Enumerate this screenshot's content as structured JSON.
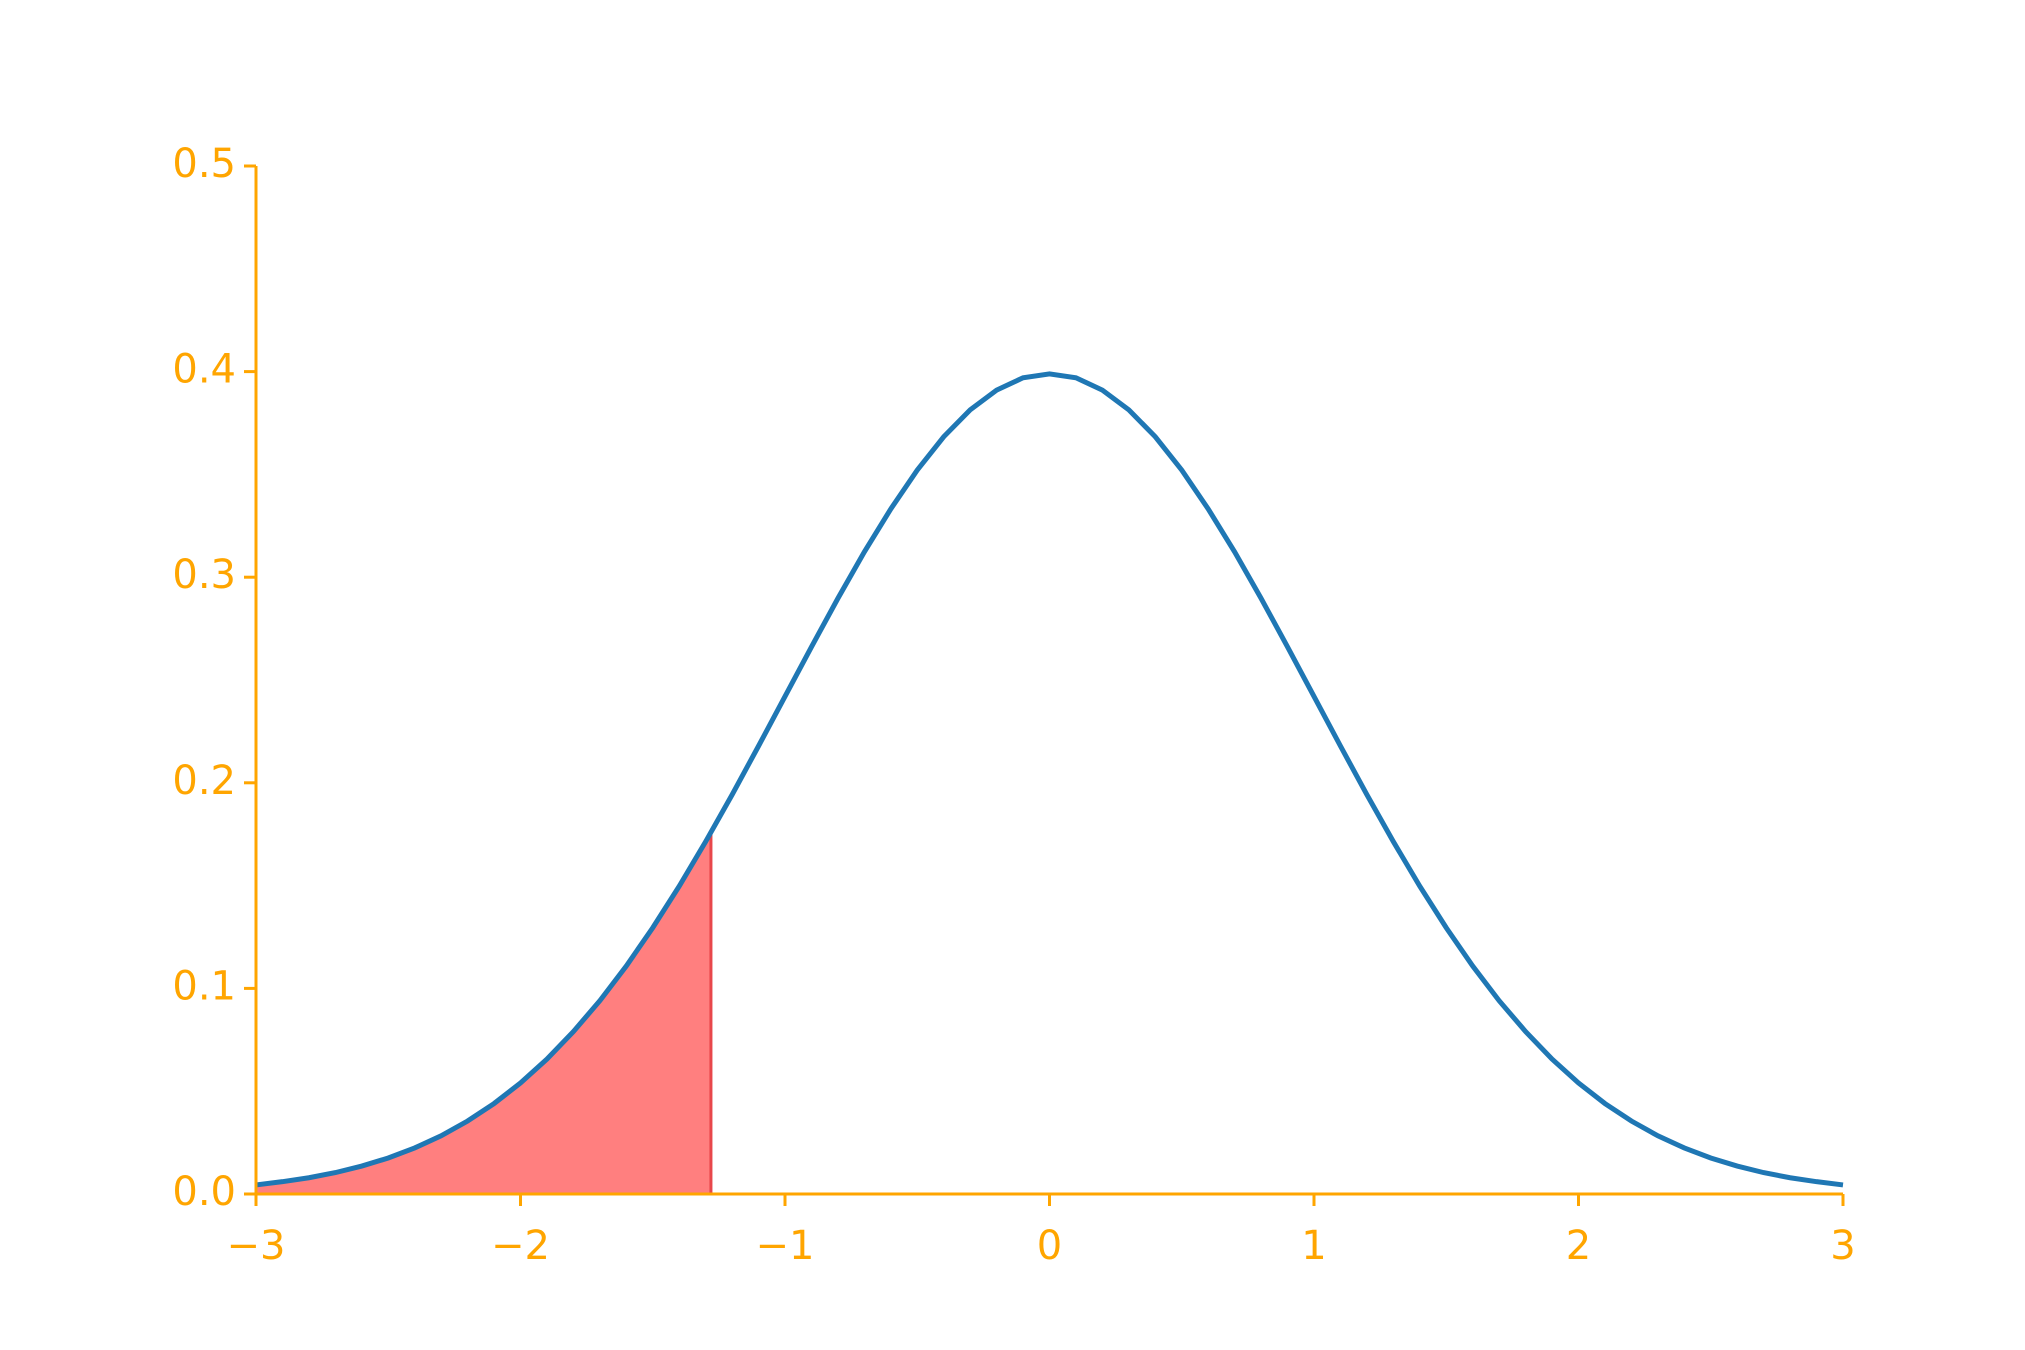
{
  "chart_data": {
    "type": "line",
    "x": [
      -3.0,
      -2.9,
      -2.8,
      -2.7,
      -2.6,
      -2.5,
      -2.4,
      -2.3,
      -2.2,
      -2.1,
      -2.0,
      -1.9,
      -1.8,
      -1.7,
      -1.6,
      -1.5,
      -1.4,
      -1.3,
      -1.2,
      -1.1,
      -1.0,
      -0.9,
      -0.8,
      -0.7,
      -0.6,
      -0.5,
      -0.4,
      -0.3,
      -0.2,
      -0.1,
      0.0,
      0.1,
      0.2,
      0.3,
      0.4,
      0.5,
      0.6,
      0.7,
      0.8,
      0.9,
      1.0,
      1.1,
      1.2,
      1.3,
      1.4,
      1.5,
      1.6,
      1.7,
      1.8,
      1.9,
      2.0,
      2.1,
      2.2,
      2.3,
      2.4,
      2.5,
      2.6,
      2.7,
      2.8,
      2.9,
      3.0
    ],
    "series": [
      {
        "color": "#1f77b4",
        "values": [
          0.0044,
          0.006,
          0.0079,
          0.0104,
          0.0136,
          0.0175,
          0.0224,
          0.0283,
          0.0355,
          0.044,
          0.054,
          0.0656,
          0.079,
          0.094,
          0.1109,
          0.1295,
          0.1497,
          0.1714,
          0.1942,
          0.2179,
          0.242,
          0.2661,
          0.2897,
          0.3123,
          0.3332,
          0.3521,
          0.3683,
          0.3814,
          0.391,
          0.397,
          0.3989,
          0.397,
          0.391,
          0.3814,
          0.3683,
          0.3521,
          0.3332,
          0.3123,
          0.2897,
          0.2661,
          0.242,
          0.2179,
          0.1942,
          0.1714,
          0.1497,
          0.1295,
          0.1109,
          0.094,
          0.079,
          0.0656,
          0.054,
          0.044,
          0.0355,
          0.0283,
          0.0224,
          0.0175,
          0.0136,
          0.0104,
          0.0079,
          0.006,
          0.0044
        ]
      }
    ],
    "shade": {
      "color": "#ff7f7f",
      "edge_color": "#e8474a",
      "x": [
        -3.0,
        -2.9,
        -2.8,
        -2.7,
        -2.6,
        -2.5,
        -2.4,
        -2.3,
        -2.2,
        -2.1,
        -2.0,
        -1.9,
        -1.8,
        -1.7,
        -1.6,
        -1.5,
        -1.4,
        -1.3,
        -1.28
      ],
      "values": [
        0.0044,
        0.006,
        0.0079,
        0.0104,
        0.0136,
        0.0175,
        0.0224,
        0.0283,
        0.0355,
        0.044,
        0.054,
        0.0656,
        0.079,
        0.094,
        0.1109,
        0.1295,
        0.1497,
        0.1714,
        0.1758
      ]
    },
    "xlim": [
      -3,
      3
    ],
    "ylim": [
      0,
      0.5
    ],
    "xticks": [
      {
        "value": -3,
        "label": "−3"
      },
      {
        "value": -2,
        "label": "−2"
      },
      {
        "value": -1,
        "label": "−1"
      },
      0,
      1,
      2,
      3
    ],
    "yticks": [
      {
        "value": 0,
        "label": "0.0"
      },
      0.1,
      0.2,
      0.3,
      0.4,
      0.5
    ],
    "axis_color": "#ffa500",
    "grid": false
  }
}
